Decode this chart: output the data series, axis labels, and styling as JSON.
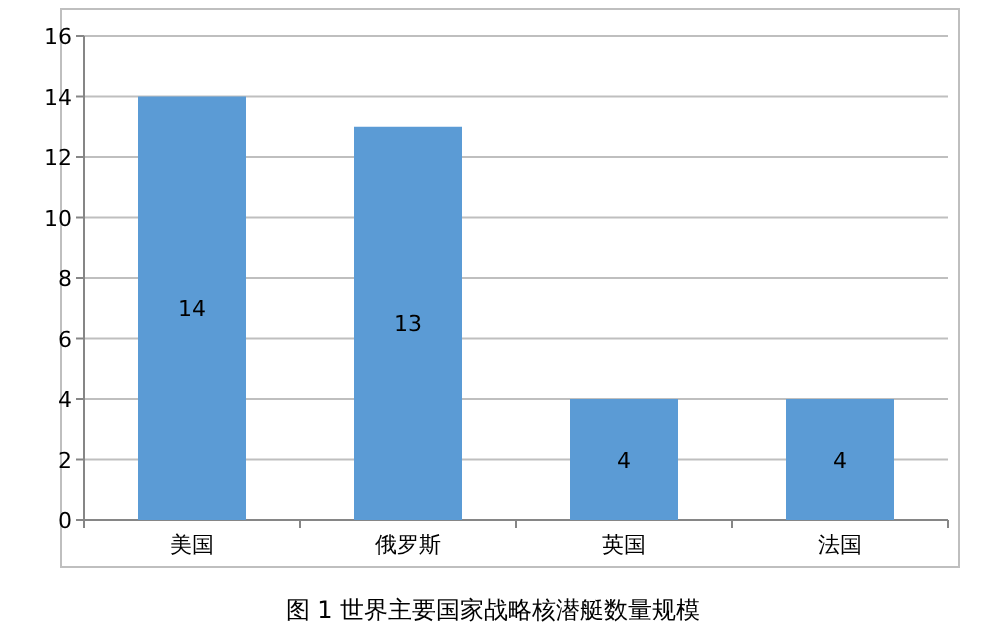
{
  "chart_data": {
    "type": "bar",
    "title": "图 1  世界主要国家战略核潜艇数量规模",
    "categories": [
      "美国",
      "俄罗斯",
      "英国",
      "法国"
    ],
    "values": [
      14,
      13,
      4,
      4
    ],
    "color": "#5b9bd5",
    "ylim": [
      0,
      16
    ],
    "yticks": [
      0,
      2,
      4,
      6,
      8,
      10,
      12,
      14,
      16
    ],
    "grid": "y",
    "data_labels": true,
    "legend": false
  }
}
